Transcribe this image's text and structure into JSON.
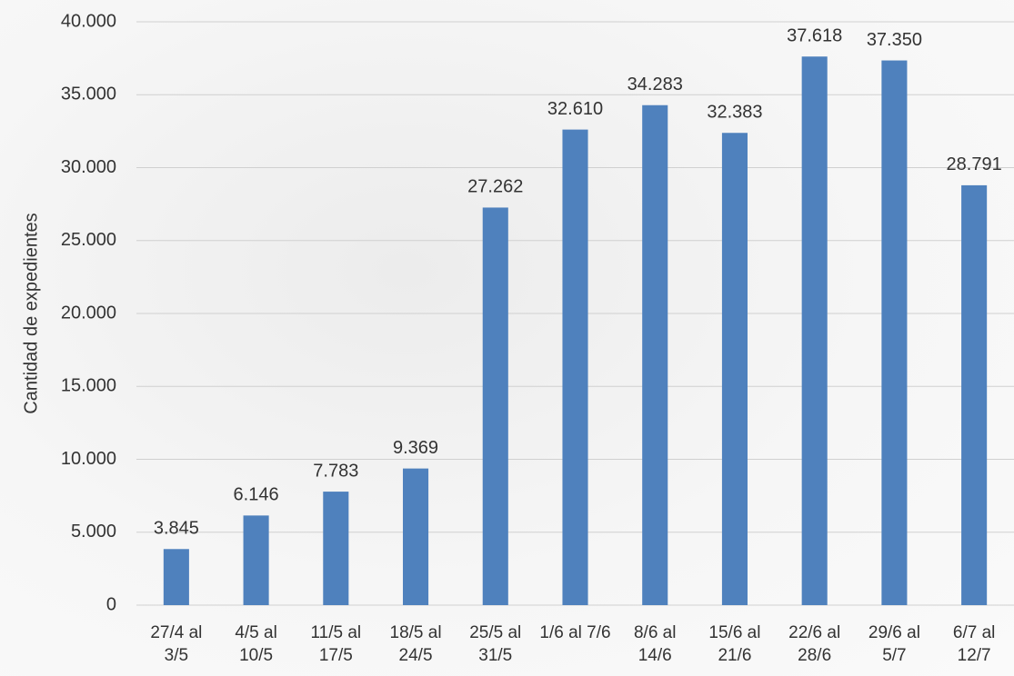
{
  "chart_data": {
    "type": "bar",
    "y_axis_label": "Cantidad de expedientes",
    "categories": [
      "27/4 al 3/5",
      "4/5 al 10/5",
      "11/5 al 17/5",
      "18/5 al 24/5",
      "25/5 al 31/5",
      "1/6 al 7/6",
      "8/6 al 14/6",
      "15/6 al 21/6",
      "22/6 al 28/6",
      "29/6 al 5/7",
      "6/7 al 12/7"
    ],
    "values": [
      3845,
      6146,
      7783,
      9369,
      27262,
      32610,
      34283,
      32383,
      37618,
      37350,
      28791
    ],
    "value_labels": [
      "3.845",
      "6.146",
      "7.783",
      "9.369",
      "27.262",
      "32.610",
      "34.283",
      "32.383",
      "37.618",
      "37.350",
      "28.791"
    ],
    "color": "#4f81bd",
    "ylim": [
      0,
      40000
    ],
    "yticks": [
      0,
      {
        "value": 5000,
        "label": "5.000"
      },
      {
        "value": 10000,
        "label": "10.000"
      },
      {
        "value": 15000,
        "label": "15.000"
      },
      {
        "value": 20000,
        "label": "20.000"
      },
      {
        "value": 25000,
        "label": "25.000"
      },
      {
        "value": 30000,
        "label": "30.000"
      },
      {
        "value": 35000,
        "label": "35.000"
      },
      {
        "value": 40000,
        "label": "40.000"
      }
    ],
    "grid": true
  }
}
